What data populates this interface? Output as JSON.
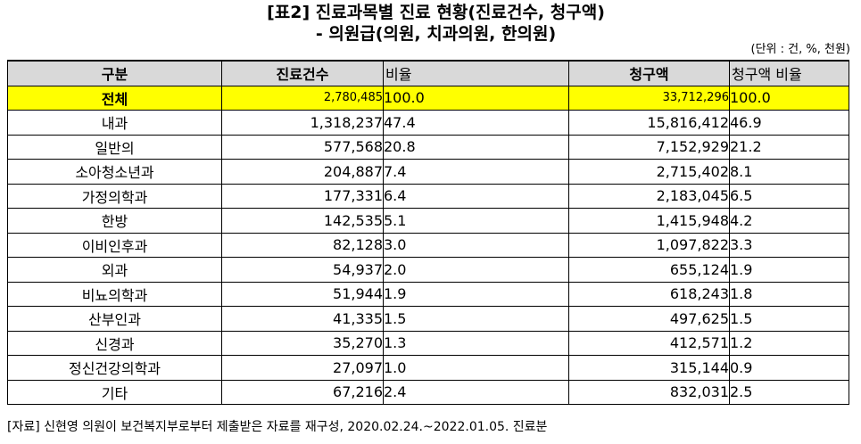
{
  "title": {
    "line1": "[표2] 진료과목별 진료 현황(진료건수, 청구액)",
    "line2": "- 의원급(의원, 치과의원, 한의원)"
  },
  "unit": "(단위 : 건, %, 천원)",
  "table": {
    "headers": [
      "구분",
      "진료건수",
      "비율",
      "청구액",
      "청구액 비율"
    ],
    "rows": [
      {
        "category": "전체",
        "cases": "2,780,485",
        "case_ratio": "100.0",
        "claim": "33,712,296",
        "claim_ratio": "100.0"
      },
      {
        "category": "내과",
        "cases": "1,318,237",
        "case_ratio": "47.4",
        "claim": "15,816,412",
        "claim_ratio": "46.9"
      },
      {
        "category": "일반의",
        "cases": "577,568",
        "case_ratio": "20.8",
        "claim": "7,152,929",
        "claim_ratio": "21.2"
      },
      {
        "category": "소아청소년과",
        "cases": "204,887",
        "case_ratio": "7.4",
        "claim": "2,715,402",
        "claim_ratio": "8.1"
      },
      {
        "category": "가정의학과",
        "cases": "177,331",
        "case_ratio": "6.4",
        "claim": "2,183,045",
        "claim_ratio": "6.5"
      },
      {
        "category": "한방",
        "cases": "142,535",
        "case_ratio": "5.1",
        "claim": "1,415,948",
        "claim_ratio": "4.2"
      },
      {
        "category": "이비인후과",
        "cases": "82,128",
        "case_ratio": "3.0",
        "claim": "1,097,822",
        "claim_ratio": "3.3"
      },
      {
        "category": "외과",
        "cases": "54,937",
        "case_ratio": "2.0",
        "claim": "655,124",
        "claim_ratio": "1.9"
      },
      {
        "category": "비뇨의학과",
        "cases": "51,944",
        "case_ratio": "1.9",
        "claim": "618,243",
        "claim_ratio": "1.8"
      },
      {
        "category": "산부인과",
        "cases": "41,335",
        "case_ratio": "1.5",
        "claim": "497,625",
        "claim_ratio": "1.5"
      },
      {
        "category": "신경과",
        "cases": "35,270",
        "case_ratio": "1.3",
        "claim": "412,571",
        "claim_ratio": "1.2"
      },
      {
        "category": "정신건강의학과",
        "cases": "27,097",
        "case_ratio": "1.0",
        "claim": "315,144",
        "claim_ratio": "0.9"
      },
      {
        "category": "기타",
        "cases": "67,216",
        "case_ratio": "2.4",
        "claim": "832,031",
        "claim_ratio": "2.5"
      }
    ]
  },
  "source": "[자료] 신현영 의원이 보건복지부로부터 제출받은 자료를 재구성, 2020.02.24.~2022.01.05. 진료분"
}
